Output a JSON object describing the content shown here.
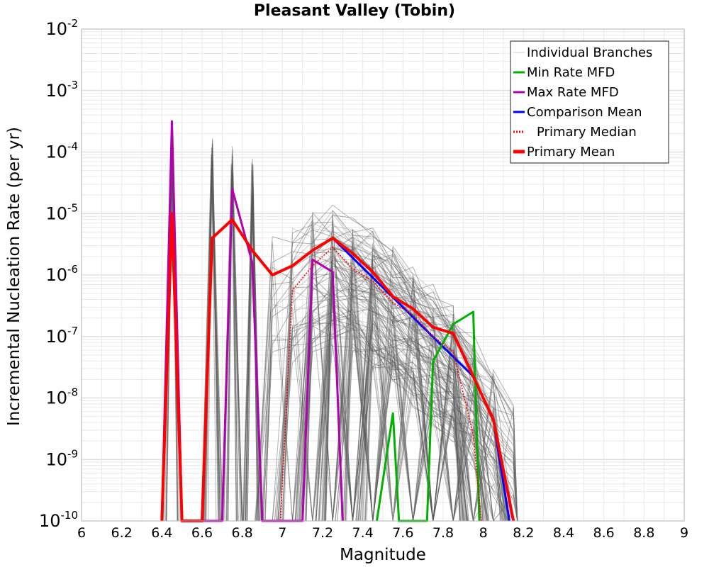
{
  "chart_data": {
    "type": "line",
    "title": "Pleasant Valley (Tobin)",
    "xlabel": "Magnitude",
    "ylabel": "Incremental Nucleation Rate (per yr)",
    "xlim": [
      6,
      9
    ],
    "ylim_exp": [
      -10,
      -2
    ],
    "yscale": "log",
    "grid": true,
    "legend_position": "top-right",
    "x_ticks": [
      "6",
      "6.2",
      "6.4",
      "6.6",
      "6.8",
      "7",
      "7.2",
      "7.4",
      "7.6",
      "7.8",
      "8",
      "8.2",
      "8.4",
      "8.6",
      "8.8",
      "9"
    ],
    "y_ticks": [
      {
        "base": "10",
        "exp": "-10",
        "value": -10
      },
      {
        "base": "10",
        "exp": "-9",
        "value": -9
      },
      {
        "base": "10",
        "exp": "-8",
        "value": -8
      },
      {
        "base": "10",
        "exp": "-7",
        "value": -7
      },
      {
        "base": "10",
        "exp": "-6",
        "value": -6
      },
      {
        "base": "10",
        "exp": "-5",
        "value": -5
      },
      {
        "base": "10",
        "exp": "-4",
        "value": -4
      },
      {
        "base": "10",
        "exp": "-3",
        "value": -3
      },
      {
        "base": "10",
        "exp": "-2",
        "value": -2
      }
    ],
    "series": [
      {
        "name": "Primary Mean",
        "color": "#ff0000",
        "style": "solid",
        "x": [
          6.4,
          6.45,
          6.5,
          6.55,
          6.6,
          6.65,
          6.75,
          6.85,
          6.95,
          7.05,
          7.15,
          7.25,
          7.35,
          7.45,
          7.55,
          7.65,
          7.75,
          7.85,
          7.95,
          8.05,
          8.15
        ],
        "log10_y": [
          -10,
          -5.0,
          -10,
          -10,
          -10,
          -5.4,
          -5.1,
          -5.6,
          -6.0,
          -5.85,
          -5.6,
          -5.4,
          -5.65,
          -5.95,
          -6.35,
          -6.55,
          -6.85,
          -6.95,
          -7.65,
          -8.35,
          -10
        ]
      },
      {
        "name": "Comparison Mean",
        "color": "#0000ff",
        "style": "solid",
        "x": [
          6.95,
          7.05,
          7.15,
          7.25,
          7.95,
          8.05,
          8.13
        ],
        "log10_y": [
          -6.0,
          -5.85,
          -5.6,
          -5.4,
          -7.65,
          -8.35,
          -10
        ]
      },
      {
        "name": "Primary Median",
        "color": "#ff0000",
        "style": "dotted",
        "x": [
          6.99,
          7.05,
          7.15,
          7.25,
          7.35,
          7.45,
          7.55,
          7.65,
          7.75,
          7.85,
          7.95,
          7.99
        ],
        "log10_y": [
          -10,
          -6.25,
          -5.85,
          -5.55,
          -5.9,
          -6.1,
          -6.45,
          -6.65,
          -7.0,
          -7.25,
          -8.6,
          -10
        ]
      },
      {
        "name": "Min Rate MFD",
        "color": "#00b000",
        "style": "solid",
        "x": [
          7.47,
          7.55,
          7.58,
          7.72,
          7.75,
          7.85,
          7.95,
          7.98
        ],
        "log10_y": [
          -10,
          -8.25,
          -10,
          -10,
          -7.4,
          -6.8,
          -6.6,
          -10
        ]
      },
      {
        "name": "Max Rate MFD",
        "color": "#b000b0",
        "style": "solid",
        "x": [
          6.4,
          6.45,
          6.5,
          6.7,
          6.75,
          6.8,
          6.85,
          6.9,
          7.1,
          7.15,
          7.25,
          7.3
        ],
        "log10_y": [
          -10,
          -3.5,
          -10,
          -10,
          -4.6,
          -5.2,
          -5.8,
          -10,
          -10,
          -5.75,
          -5.95,
          -10
        ]
      }
    ],
    "legend": [
      {
        "label": "Individual Branches",
        "color": "#c8c8c8",
        "style": "thin"
      },
      {
        "label": "Min Rate MFD",
        "color": "#00b000",
        "style": "solid"
      },
      {
        "label": "Max Rate MFD",
        "color": "#b000b0",
        "style": "solid"
      },
      {
        "label": "Comparison Mean",
        "color": "#0000ff",
        "style": "solid"
      },
      {
        "label": "Primary Median",
        "color": "#ff0000",
        "style": "dotted"
      },
      {
        "label": "Primary Mean",
        "color": "#ff0000",
        "style": "thick"
      }
    ]
  }
}
